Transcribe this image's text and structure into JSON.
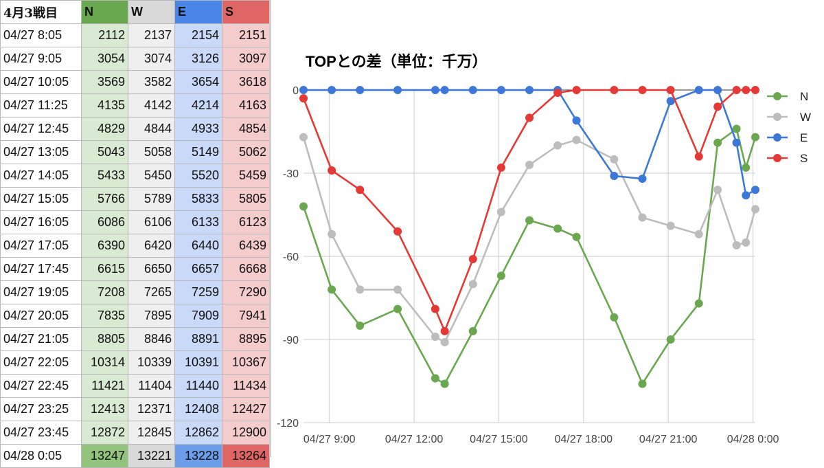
{
  "sheet": {
    "title": "4月3戦目",
    "headers": [
      "N",
      "W",
      "E",
      "S"
    ],
    "rows": [
      {
        "time": "04/27 8:05",
        "N": "2112",
        "W": "2137",
        "E": "2154",
        "S": "2151"
      },
      {
        "time": "04/27 9:05",
        "N": "3054",
        "W": "3074",
        "E": "3126",
        "S": "3097"
      },
      {
        "time": "04/27 10:05",
        "N": "3569",
        "W": "3582",
        "E": "3654",
        "S": "3618"
      },
      {
        "time": "04/27 11:25",
        "N": "4135",
        "W": "4142",
        "E": "4214",
        "S": "4163"
      },
      {
        "time": "04/27 12:45",
        "N": "4829",
        "W": "4844",
        "E": "4933",
        "S": "4854"
      },
      {
        "time": "04/27 13:05",
        "N": "5043",
        "W": "5058",
        "E": "5149",
        "S": "5062"
      },
      {
        "time": "04/27 14:05",
        "N": "5433",
        "W": "5450",
        "E": "5520",
        "S": "5459"
      },
      {
        "time": "04/27 15:05",
        "N": "5766",
        "W": "5789",
        "E": "5833",
        "S": "5805"
      },
      {
        "time": "04/27 16:05",
        "N": "6086",
        "W": "6106",
        "E": "6133",
        "S": "6123"
      },
      {
        "time": "04/27 17:05",
        "N": "6390",
        "W": "6420",
        "E": "6440",
        "S": "6439"
      },
      {
        "time": "04/27 17:45",
        "N": "6615",
        "W": "6650",
        "E": "6657",
        "S": "6668"
      },
      {
        "time": "04/27 19:05",
        "N": "7208",
        "W": "7265",
        "E": "7259",
        "S": "7290"
      },
      {
        "time": "04/27 20:05",
        "N": "7835",
        "W": "7895",
        "E": "7909",
        "S": "7941"
      },
      {
        "time": "04/27 21:05",
        "N": "8805",
        "W": "8846",
        "E": "8891",
        "S": "8895"
      },
      {
        "time": "04/27 22:05",
        "N": "10314",
        "W": "10339",
        "E": "10391",
        "S": "10367"
      },
      {
        "time": "04/27 22:45",
        "N": "11421",
        "W": "11404",
        "E": "11440",
        "S": "11434"
      },
      {
        "time": "04/27 23:25",
        "N": "12413",
        "W": "12371",
        "E": "12408",
        "S": "12427"
      },
      {
        "time": "04/27 23:45",
        "N": "12872",
        "W": "12845",
        "E": "12862",
        "S": "12900"
      },
      {
        "time": "04/28 0:05",
        "N": "13247",
        "W": "13221",
        "E": "13228",
        "S": "13264"
      }
    ]
  },
  "chart_data": {
    "type": "line",
    "title": "TOPとの差（単位：千万）",
    "xlabel": "",
    "ylabel": "",
    "x": [
      "04/27 8:05",
      "04/27 9:05",
      "04/27 10:05",
      "04/27 11:25",
      "04/27 12:45",
      "04/27 13:05",
      "04/27 14:05",
      "04/27 15:05",
      "04/27 16:05",
      "04/27 17:05",
      "04/27 17:45",
      "04/27 19:05",
      "04/27 20:05",
      "04/27 21:05",
      "04/27 22:05",
      "04/27 22:45",
      "04/27 23:25",
      "04/27 23:45",
      "04/28 0:05"
    ],
    "series": [
      {
        "name": "N",
        "color": "#6aa84f",
        "values": [
          -42,
          -72,
          -85,
          -79,
          -104,
          -106,
          -87,
          -67,
          -47,
          -50,
          -53,
          -82,
          -106,
          -90,
          -77,
          -19,
          -14,
          -28,
          -17
        ]
      },
      {
        "name": "W",
        "color": "#bdbdbd",
        "values": [
          -17,
          -52,
          -72,
          -72,
          -89,
          -91,
          -70,
          -44,
          -27,
          -20,
          -18,
          -25,
          -46,
          -49,
          -52,
          -36,
          -56,
          -55,
          -43
        ]
      },
      {
        "name": "E",
        "color": "#3c78d8",
        "values": [
          0,
          0,
          0,
          0,
          0,
          0,
          0,
          0,
          0,
          0,
          -11,
          -31,
          -32,
          -4,
          0,
          0,
          -19,
          -38,
          -36
        ]
      },
      {
        "name": "S",
        "color": "#e53935",
        "values": [
          -3,
          -29,
          -36,
          -51,
          -79,
          -87,
          -61,
          -28,
          -10,
          -1,
          0,
          0,
          0,
          0,
          -24,
          -6,
          0,
          0,
          0
        ]
      }
    ],
    "ylim": [
      -120,
      0
    ],
    "yticks": [
      0,
      -30,
      -60,
      -90,
      -120
    ],
    "xticks": [
      "04/27 9:00",
      "04/27 12:00",
      "04/27 15:00",
      "04/27 18:00",
      "04/27 21:00",
      "04/28 0:00"
    ],
    "grid": true,
    "legend": "right"
  }
}
